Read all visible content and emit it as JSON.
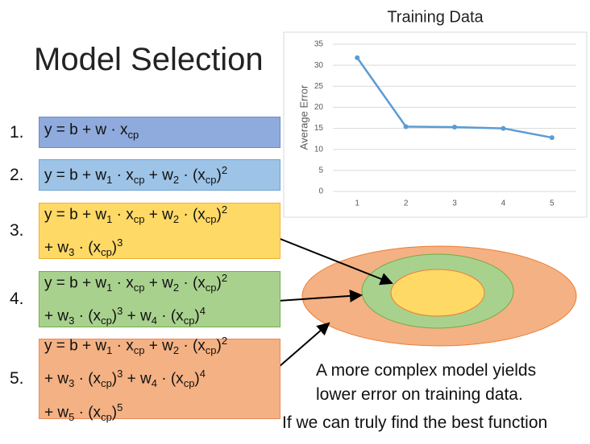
{
  "title": "Model Selection",
  "models": [
    {
      "number": "1.",
      "lines": [
        [
          {
            "text": "y = b + w · x"
          },
          {
            "sub": "cp"
          }
        ]
      ]
    },
    {
      "number": "2.",
      "lines": [
        [
          {
            "text": "y = b + w"
          },
          {
            "sub": "1"
          },
          {
            "text": " · x"
          },
          {
            "sub": "cp"
          },
          {
            "text": " + w"
          },
          {
            "sub": "2"
          },
          {
            "text": " · (x"
          },
          {
            "sub": "cp"
          },
          {
            "text": ")"
          },
          {
            "sup": "2"
          }
        ]
      ]
    },
    {
      "number": "3.",
      "lines": [
        [
          {
            "text": "y = b + w"
          },
          {
            "sub": "1"
          },
          {
            "text": " · x"
          },
          {
            "sub": "cp"
          },
          {
            "text": " + w"
          },
          {
            "sub": "2"
          },
          {
            "text": " · (x"
          },
          {
            "sub": "cp"
          },
          {
            "text": ")"
          },
          {
            "sup": "2"
          }
        ],
        [
          {
            "text": "+ w"
          },
          {
            "sub": "3"
          },
          {
            "text": " · (x"
          },
          {
            "sub": "cp"
          },
          {
            "text": ")"
          },
          {
            "sup": "3"
          }
        ]
      ]
    },
    {
      "number": "4.",
      "lines": [
        [
          {
            "text": "y = b + w"
          },
          {
            "sub": "1"
          },
          {
            "text": " · x"
          },
          {
            "sub": "cp"
          },
          {
            "text": " + w"
          },
          {
            "sub": "2"
          },
          {
            "text": " · (x"
          },
          {
            "sub": "cp"
          },
          {
            "text": ")"
          },
          {
            "sup": "2"
          }
        ],
        [
          {
            "text": "+ w"
          },
          {
            "sub": "3"
          },
          {
            "text": " · (x"
          },
          {
            "sub": "cp"
          },
          {
            "text": ")"
          },
          {
            "sup": "3"
          },
          {
            "text": " + w"
          },
          {
            "sub": "4"
          },
          {
            "text": " · (x"
          },
          {
            "sub": "cp"
          },
          {
            "text": ")"
          },
          {
            "sup": "4"
          }
        ]
      ]
    },
    {
      "number": "5.",
      "lines": [
        [
          {
            "text": "y = b + w"
          },
          {
            "sub": "1"
          },
          {
            "text": " · x"
          },
          {
            "sub": "cp"
          },
          {
            "text": " + w"
          },
          {
            "sub": "2"
          },
          {
            "text": " · (x"
          },
          {
            "sub": "cp"
          },
          {
            "text": ")"
          },
          {
            "sup": "2"
          }
        ],
        [
          {
            "text": "+ w"
          },
          {
            "sub": "3"
          },
          {
            "text": " · (x"
          },
          {
            "sub": "cp"
          },
          {
            "text": ")"
          },
          {
            "sup": "3"
          },
          {
            "text": " + w"
          },
          {
            "sub": "4"
          },
          {
            "text": " · (x"
          },
          {
            "sub": "cp"
          },
          {
            "text": ")"
          },
          {
            "sup": "4"
          }
        ],
        [
          {
            "text": "+ w"
          },
          {
            "sub": "5"
          },
          {
            "text": " · (x"
          },
          {
            "sub": "cp"
          },
          {
            "text": ")"
          },
          {
            "sup": "5"
          }
        ]
      ]
    }
  ],
  "caption": [
    "A more complex model yields",
    "lower error on training data."
  ],
  "footer": "If we can truly find the best function",
  "chart_data": {
    "type": "line",
    "title": "Training Data",
    "y_label": "Average Error",
    "categories": [
      "1",
      "2",
      "3",
      "4",
      "5"
    ],
    "values": [
      31.8,
      15.4,
      15.3,
      15.0,
      12.8
    ],
    "color": "#5b9bd5",
    "ylim": [
      0,
      35
    ],
    "yticks": [
      0,
      5,
      10,
      15,
      20,
      25,
      30,
      35
    ],
    "grid": true
  }
}
